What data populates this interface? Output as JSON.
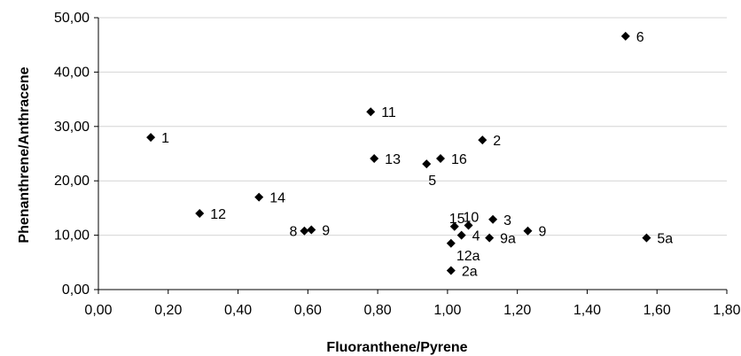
{
  "chart_data": {
    "type": "scatter",
    "xlabel": "Fluoranthene/Pyrene",
    "ylabel": "Phenanthrene/Anthracene",
    "xlim": [
      0,
      1.8
    ],
    "ylim": [
      0,
      50
    ],
    "x_ticks": [
      "0,00",
      "0,20",
      "0,40",
      "0,60",
      "0,80",
      "1,00",
      "1,20",
      "1,40",
      "1,60",
      "1,80"
    ],
    "y_ticks": [
      "0,00",
      "10,00",
      "20,00",
      "30,00",
      "40,00",
      "50,00"
    ],
    "grid": "horizontal",
    "marker": "diamond",
    "marker_color": "#000000",
    "points": [
      {
        "label": "1",
        "x": 0.15,
        "y": 28.0,
        "label_pos": "right"
      },
      {
        "label": "12",
        "x": 0.29,
        "y": 14.0,
        "label_pos": "right"
      },
      {
        "label": "14",
        "x": 0.46,
        "y": 17.0,
        "label_pos": "right"
      },
      {
        "label": "8",
        "x": 0.59,
        "y": 10.8,
        "label_pos": "left"
      },
      {
        "label": "9",
        "x": 0.61,
        "y": 11.0,
        "label_pos": "right"
      },
      {
        "label": "11",
        "x": 0.78,
        "y": 32.7,
        "label_pos": "right"
      },
      {
        "label": "13",
        "x": 0.79,
        "y": 24.1,
        "label_pos": "right"
      },
      {
        "label": "5",
        "x": 0.94,
        "y": 23.1,
        "label_pos": "below"
      },
      {
        "label": "16",
        "x": 0.98,
        "y": 24.1,
        "label_pos": "right"
      },
      {
        "label": "2",
        "x": 1.1,
        "y": 27.5,
        "label_pos": "right"
      },
      {
        "label": "15",
        "x": 1.02,
        "y": 11.6,
        "label_pos": "above"
      },
      {
        "label": "4",
        "x": 1.04,
        "y": 10.0,
        "label_pos": "right"
      },
      {
        "label": "10",
        "x": 1.06,
        "y": 11.8,
        "label_pos": "above"
      },
      {
        "label": "3",
        "x": 1.13,
        "y": 12.9,
        "label_pos": "right"
      },
      {
        "label": "12a",
        "x": 1.01,
        "y": 8.5,
        "label_pos": "below-right"
      },
      {
        "label": "9a",
        "x": 1.12,
        "y": 9.5,
        "label_pos": "right"
      },
      {
        "label": "9",
        "x": 1.23,
        "y": 10.8,
        "label_pos": "right"
      },
      {
        "label": "2a",
        "x": 1.01,
        "y": 3.5,
        "label_pos": "right"
      },
      {
        "label": "6",
        "x": 1.51,
        "y": 46.6,
        "label_pos": "right"
      },
      {
        "label": "5a",
        "x": 1.57,
        "y": 9.5,
        "label_pos": "right"
      }
    ]
  }
}
